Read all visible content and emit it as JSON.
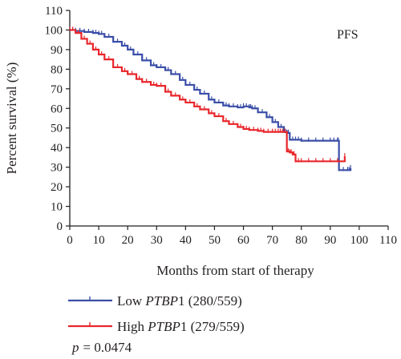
{
  "chart_data": {
    "type": "line",
    "title": "PFS",
    "xlabel": "Months from start of therapy",
    "ylabel": "Percent survival (%)",
    "xlim": [
      0,
      110
    ],
    "ylim": [
      0,
      110
    ],
    "xticks": [
      0,
      10,
      20,
      30,
      40,
      50,
      60,
      70,
      80,
      90,
      100,
      110
    ],
    "yticks": [
      0,
      10,
      20,
      30,
      40,
      50,
      60,
      70,
      80,
      90,
      100,
      110
    ],
    "legend_position": "bottom-left, below axes",
    "p_value": {
      "prefix": "p",
      "text": "= 0.0474"
    },
    "series": [
      {
        "name_prefix": "Low ",
        "name_gene": "PTBP",
        "name_suffix": "1 (280/559)",
        "color": "#3a4ea8",
        "x": [
          0,
          2,
          5,
          8,
          10,
          12,
          15,
          18,
          20,
          22,
          25,
          28,
          30,
          33,
          35,
          38,
          40,
          43,
          45,
          48,
          50,
          53,
          55,
          58,
          60,
          62,
          63,
          65,
          68,
          70,
          72,
          74,
          75,
          76,
          78,
          80,
          85,
          90,
          92.5,
          93,
          96,
          97
        ],
        "y": [
          100,
          99.5,
          99,
          98.5,
          98,
          96.5,
          94,
          92,
          90,
          87.5,
          84.5,
          82,
          81,
          79.5,
          77.5,
          74.5,
          72,
          69.5,
          67.5,
          64.5,
          63,
          61.5,
          61,
          60.5,
          61,
          60.5,
          60,
          58,
          55.5,
          53,
          50.5,
          48,
          47.5,
          44,
          44,
          43.5,
          43.5,
          43.5,
          43.5,
          28.5,
          28.5,
          29.5
        ]
      },
      {
        "name_prefix": "High ",
        "name_gene": "PTBP",
        "name_suffix": "1 (279/559)",
        "color": "#e8262b",
        "x": [
          0,
          2,
          4,
          6,
          8,
          10,
          12,
          15,
          18,
          20,
          23,
          25,
          28,
          30,
          33,
          35,
          38,
          40,
          43,
          45,
          48,
          50,
          53,
          55,
          58,
          60,
          62,
          65,
          67,
          70,
          72,
          73.5,
          75,
          76,
          77,
          78,
          80,
          85,
          90,
          95
        ],
        "y": [
          100,
          98.5,
          95.5,
          93,
          90,
          87.5,
          85,
          81,
          79,
          77.5,
          75,
          73.5,
          72,
          71.5,
          68.5,
          66.5,
          64.5,
          63,
          61,
          59.5,
          57.5,
          56,
          53.5,
          52,
          50.5,
          49.5,
          49,
          48.5,
          48,
          48,
          48,
          48,
          38,
          37.5,
          36.5,
          33,
          33,
          33,
          33,
          35.5
        ]
      }
    ]
  }
}
